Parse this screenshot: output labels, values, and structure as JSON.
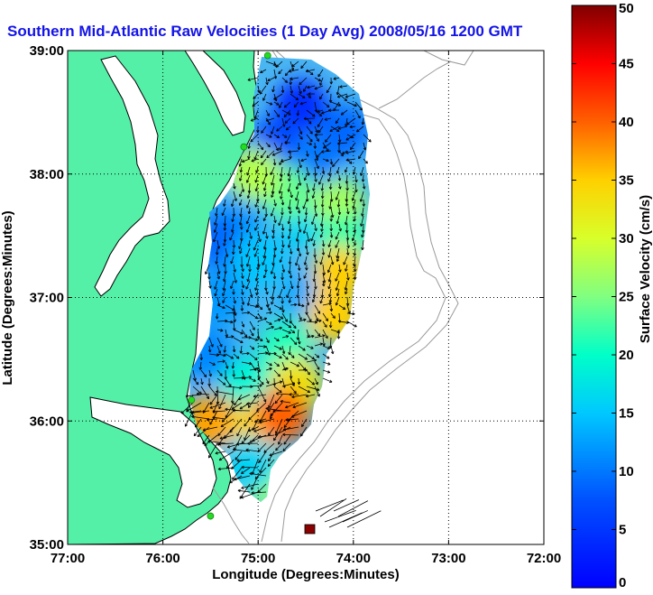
{
  "chart_data": {
    "type": "heatmap",
    "title": "Southern Mid-Atlantic Raw Velocities (1 Day Avg) 2008/05/16 1200 GMT",
    "xlabel": "Longitude (Degrees:Minutes)",
    "ylabel": "Latitude (Degrees:Minutes)",
    "x_ticks": [
      "77:00",
      "76:00",
      "75:00",
      "74:00",
      "73:00",
      "72:00"
    ],
    "x_tick_values": [
      -77,
      -76,
      -75,
      -74,
      -73,
      -72
    ],
    "y_ticks": [
      "39:00",
      "38:00",
      "37:00",
      "36:00",
      "35:00"
    ],
    "y_tick_values": [
      39,
      38,
      37,
      36,
      35
    ],
    "xlim": [
      -77,
      -72
    ],
    "ylim": [
      35,
      39
    ],
    "grid": true,
    "colorbar": {
      "label": "Surface Velocity (cm/s)",
      "ticks": [
        "0",
        "5",
        "10",
        "15",
        "20",
        "25",
        "30",
        "35",
        "40",
        "45",
        "50"
      ],
      "range": [
        0,
        50
      ],
      "colormap": "jet"
    },
    "land_color": "#55f0a8",
    "coast_color": "#000000",
    "bathymetry_color": "#9a9a9a",
    "station_color": "#22dd22",
    "arrow_color": "#000000",
    "stations": [
      {
        "lon": -74.9,
        "lat": 38.96
      },
      {
        "lon": -75.15,
        "lat": 38.22
      },
      {
        "lon": -75.7,
        "lat": 36.17
      },
      {
        "lon": -75.5,
        "lat": 35.23
      }
    ],
    "velocity_blobs": [
      {
        "lon": -74.55,
        "lat": 38.55,
        "speed": 4
      },
      {
        "lon": -74.8,
        "lat": 38.25,
        "speed": 7
      },
      {
        "lon": -74.45,
        "lat": 38.05,
        "speed": 10
      },
      {
        "lon": -74.1,
        "lat": 38.35,
        "speed": 9
      },
      {
        "lon": -75.15,
        "lat": 37.75,
        "speed": 12
      },
      {
        "lon": -75.4,
        "lat": 37.45,
        "speed": 9
      },
      {
        "lon": -75.4,
        "lat": 37.0,
        "speed": 12
      },
      {
        "lon": -75.55,
        "lat": 36.55,
        "speed": 11
      },
      {
        "lon": -75.0,
        "lat": 37.3,
        "speed": 15
      },
      {
        "lon": -74.45,
        "lat": 37.0,
        "speed": 13
      },
      {
        "lon": -74.5,
        "lat": 37.6,
        "speed": 16
      },
      {
        "lon": -74.7,
        "lat": 37.85,
        "speed": 24
      },
      {
        "lon": -74.15,
        "lat": 37.75,
        "speed": 27
      },
      {
        "lon": -74.1,
        "lat": 37.45,
        "speed": 22
      },
      {
        "lon": -74.7,
        "lat": 36.6,
        "speed": 21
      },
      {
        "lon": -75.1,
        "lat": 36.3,
        "speed": 19
      },
      {
        "lon": -75.05,
        "lat": 38.0,
        "speed": 28
      },
      {
        "lon": -74.15,
        "lat": 37.2,
        "speed": 35
      },
      {
        "lon": -74.2,
        "lat": 36.85,
        "speed": 35
      },
      {
        "lon": -74.6,
        "lat": 36.3,
        "speed": 33
      },
      {
        "lon": -75.5,
        "lat": 36.0,
        "speed": 37
      },
      {
        "lon": -75.0,
        "lat": 35.95,
        "speed": 34
      },
      {
        "lon": -74.75,
        "lat": 36.05,
        "speed": 40
      },
      {
        "lon": -74.9,
        "lat": 35.5,
        "speed": 26
      },
      {
        "lon": -75.1,
        "lat": 35.65,
        "speed": 16
      },
      {
        "lon": -74.55,
        "lat": 35.1,
        "speed": 48
      }
    ]
  }
}
